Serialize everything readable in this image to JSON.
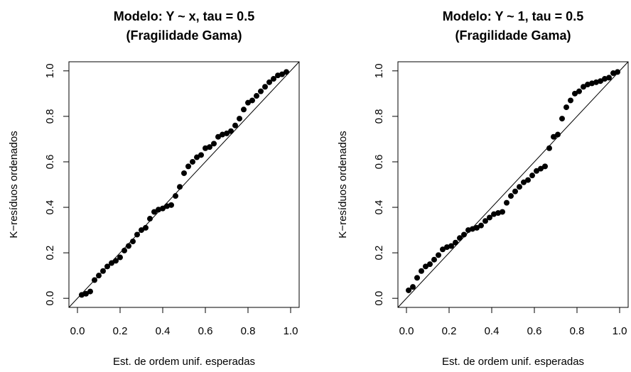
{
  "chart_data": [
    {
      "type": "scatter",
      "title": "Modelo: Y ~ x, tau = 0.5",
      "subtitle": "(Fragilidade Gama)",
      "x_label": "Est. de ordem unif. esperadas",
      "y_label": "K−resíduos ordenados",
      "xlim": [
        -0.04,
        1.04
      ],
      "ylim": [
        -0.04,
        1.04
      ],
      "xticks": [
        {
          "value": 0,
          "label": "0.0"
        },
        0.2,
        0.4,
        0.6,
        0.8,
        {
          "value": 1,
          "label": "1.0"
        }
      ],
      "yticks": [
        {
          "value": 0,
          "label": "0.0"
        },
        0.2,
        0.4,
        0.6,
        0.8,
        {
          "value": 1,
          "label": "1.0"
        }
      ],
      "diagonal": true,
      "color": "#000000",
      "x": [
        0.02,
        0.04,
        0.06,
        0.08,
        0.1,
        0.12,
        0.14,
        0.16,
        0.18,
        0.2,
        0.22,
        0.24,
        0.26,
        0.28,
        0.3,
        0.32,
        0.34,
        0.36,
        0.38,
        0.4,
        0.42,
        0.44,
        0.46,
        0.48,
        0.5,
        0.52,
        0.54,
        0.56,
        0.58,
        0.6,
        0.62,
        0.64,
        0.66,
        0.68,
        0.7,
        0.72,
        0.74,
        0.76,
        0.78,
        0.8,
        0.82,
        0.84,
        0.86,
        0.88,
        0.9,
        0.92,
        0.94,
        0.96,
        0.98
      ],
      "y": [
        0.015,
        0.02,
        0.03,
        0.08,
        0.1,
        0.12,
        0.14,
        0.155,
        0.165,
        0.18,
        0.21,
        0.23,
        0.25,
        0.28,
        0.3,
        0.31,
        0.35,
        0.38,
        0.39,
        0.395,
        0.405,
        0.41,
        0.45,
        0.49,
        0.55,
        0.58,
        0.6,
        0.62,
        0.63,
        0.66,
        0.665,
        0.68,
        0.71,
        0.72,
        0.725,
        0.735,
        0.76,
        0.79,
        0.83,
        0.86,
        0.87,
        0.89,
        0.91,
        0.93,
        0.95,
        0.965,
        0.98,
        0.985,
        0.995
      ]
    },
    {
      "type": "scatter",
      "title": "Modelo: Y ~ 1, tau = 0.5",
      "subtitle": "(Fragilidade Gama)",
      "x_label": "Est. de ordem unif. esperadas",
      "y_label": "K−resíduos ordenados",
      "xlim": [
        -0.04,
        1.04
      ],
      "ylim": [
        -0.04,
        1.04
      ],
      "xticks": [
        {
          "value": 0,
          "label": "0.0"
        },
        0.2,
        0.4,
        0.6,
        0.8,
        {
          "value": 1,
          "label": "1.0"
        }
      ],
      "yticks": [
        {
          "value": 0,
          "label": "0.0"
        },
        0.2,
        0.4,
        0.6,
        0.8,
        {
          "value": 1,
          "label": "1.0"
        }
      ],
      "diagonal": true,
      "color": "#000000",
      "x": [
        0.01,
        0.03,
        0.05,
        0.07,
        0.09,
        0.11,
        0.13,
        0.15,
        0.17,
        0.19,
        0.21,
        0.23,
        0.25,
        0.27,
        0.29,
        0.31,
        0.33,
        0.35,
        0.37,
        0.39,
        0.41,
        0.43,
        0.45,
        0.47,
        0.49,
        0.51,
        0.53,
        0.55,
        0.57,
        0.59,
        0.61,
        0.63,
        0.65,
        0.67,
        0.69,
        0.71,
        0.73,
        0.75,
        0.77,
        0.79,
        0.81,
        0.83,
        0.85,
        0.87,
        0.89,
        0.91,
        0.93,
        0.95,
        0.97,
        0.99
      ],
      "y": [
        0.035,
        0.05,
        0.09,
        0.12,
        0.14,
        0.15,
        0.17,
        0.19,
        0.215,
        0.225,
        0.23,
        0.245,
        0.265,
        0.28,
        0.3,
        0.305,
        0.31,
        0.32,
        0.34,
        0.355,
        0.37,
        0.375,
        0.38,
        0.42,
        0.45,
        0.47,
        0.49,
        0.51,
        0.52,
        0.54,
        0.56,
        0.57,
        0.58,
        0.66,
        0.71,
        0.72,
        0.79,
        0.84,
        0.87,
        0.9,
        0.91,
        0.93,
        0.94,
        0.945,
        0.95,
        0.955,
        0.965,
        0.97,
        0.99,
        0.995
      ]
    }
  ]
}
